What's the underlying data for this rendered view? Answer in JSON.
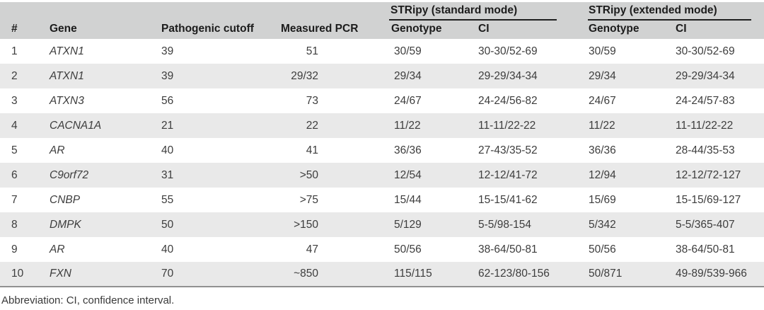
{
  "table": {
    "groups": {
      "standard": "STRipy (standard mode)",
      "extended": "STRipy (extended mode)"
    },
    "columns": {
      "num": "#",
      "gene": "Gene",
      "cutoff": "Pathogenic cutoff",
      "pcr": "Measured PCR",
      "genotype_std": "Genotype",
      "ci_std": "CI",
      "genotype_ext": "Genotype",
      "ci_ext": "CI"
    },
    "rows": [
      {
        "num": "1",
        "gene": "ATXN1",
        "cutoff": "39",
        "pcr": "51",
        "std_gt": "30/59",
        "std_ci": "30-30/52-69",
        "ext_gt": "30/59",
        "ext_ci": "30-30/52-69"
      },
      {
        "num": "2",
        "gene": "ATXN1",
        "cutoff": "39",
        "pcr": "29/32",
        "std_gt": "29/34",
        "std_ci": "29-29/34-34",
        "ext_gt": "29/34",
        "ext_ci": "29-29/34-34"
      },
      {
        "num": "3",
        "gene": "ATXN3",
        "cutoff": "56",
        "pcr": "73",
        "std_gt": "24/67",
        "std_ci": "24-24/56-82",
        "ext_gt": "24/67",
        "ext_ci": "24-24/57-83"
      },
      {
        "num": "4",
        "gene": "CACNA1A",
        "cutoff": "21",
        "pcr": "22",
        "std_gt": "11/22",
        "std_ci": "11-11/22-22",
        "ext_gt": "11/22",
        "ext_ci": "11-11/22-22"
      },
      {
        "num": "5",
        "gene": "AR",
        "cutoff": "40",
        "pcr": "41",
        "std_gt": "36/36",
        "std_ci": "27-43/35-52",
        "ext_gt": "36/36",
        "ext_ci": "28-44/35-53"
      },
      {
        "num": "6",
        "gene": "C9orf72",
        "cutoff": "31",
        "pcr": ">50",
        "std_gt": "12/54",
        "std_ci": "12-12/41-72",
        "ext_gt": "12/94",
        "ext_ci": "12-12/72-127"
      },
      {
        "num": "7",
        "gene": "CNBP",
        "cutoff": "55",
        "pcr": ">75",
        "std_gt": "15/44",
        "std_ci": "15-15/41-62",
        "ext_gt": "15/69",
        "ext_ci": "15-15/69-127"
      },
      {
        "num": "8",
        "gene": "DMPK",
        "cutoff": "50",
        "pcr": ">150",
        "std_gt": "5/129",
        "std_ci": "5-5/98-154",
        "ext_gt": "5/342",
        "ext_ci": "5-5/365-407"
      },
      {
        "num": "9",
        "gene": "AR",
        "cutoff": "40",
        "pcr": "47",
        "std_gt": "50/56",
        "std_ci": "38-64/50-81",
        "ext_gt": "50/56",
        "ext_ci": "38-64/50-81"
      },
      {
        "num": "10",
        "gene": "FXN",
        "cutoff": "70",
        "pcr": "~850",
        "std_gt": "115/115",
        "std_ci": "62-123/80-156",
        "ext_gt": "50/871",
        "ext_ci": "49-89/539-966"
      }
    ],
    "footnote": "Abbreviation: CI, confidence interval.",
    "colors": {
      "header_bg": "#d1d2d2",
      "stripe_bg": "#e9e9e9",
      "body_text": "#3d3d3d",
      "header_text": "#1c1c1c",
      "group_rule": "#1f1f1f",
      "bottom_rule": "#919191"
    }
  }
}
